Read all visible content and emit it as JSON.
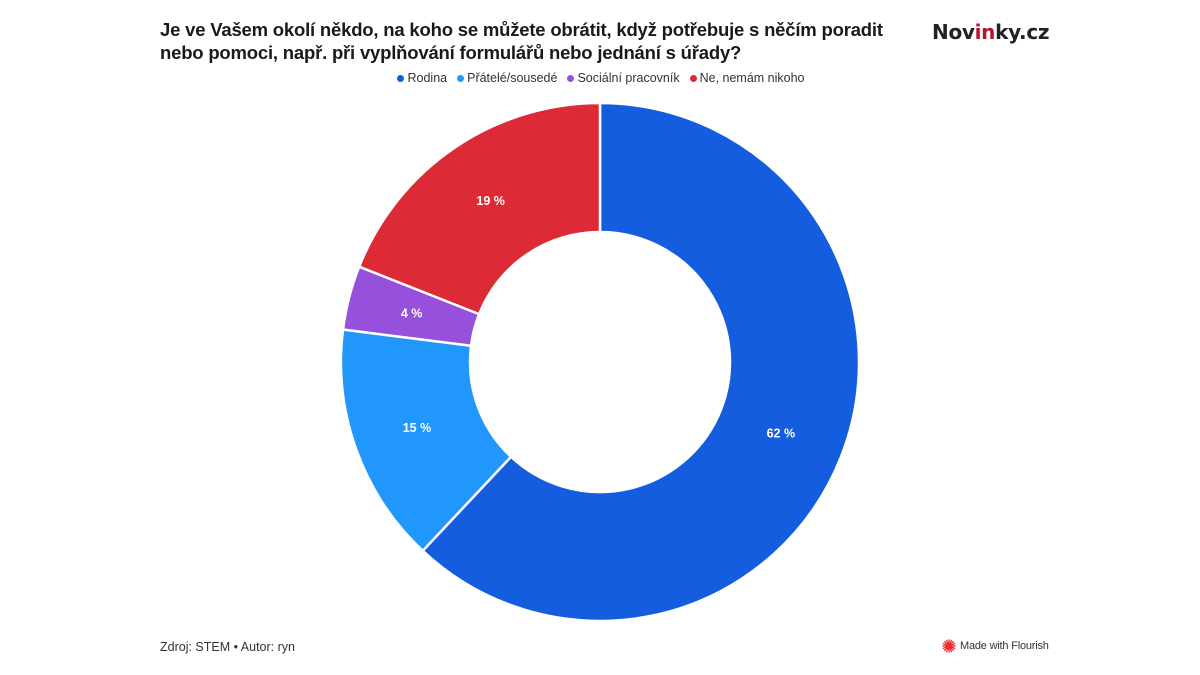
{
  "header": {
    "title": "Je ve Vašem okolí někdo, na koho se můžete obrátit, když potřebuje s něčím poradit nebo pomoci, např. při vyplňování formulářů nebo jednání s úřady?",
    "logo_prefix": "Nov",
    "logo_accent": "in",
    "logo_suffix": "ky.cz"
  },
  "legend": [
    {
      "label": "Rodina",
      "color": "#155ddf"
    },
    {
      "label": "Přátelé/sousedé",
      "color": "#2196fb"
    },
    {
      "label": "Sociální pracovník",
      "color": "#9750dc"
    },
    {
      "label": "Ne, nemám nikoho",
      "color": "#dc2b36"
    }
  ],
  "chart_data": {
    "type": "pie",
    "subtype": "donut",
    "title": "Je ve Vašem okolí někdo, na koho se můžete obrátit, když potřebuje s něčím poradit nebo pomoci, např. při vyplňování formulářů nebo jednání s úřady?",
    "categories": [
      "Rodina",
      "Přátelé/sousedé",
      "Sociální pracovník",
      "Ne, nemám nikoho"
    ],
    "values": [
      62,
      15,
      4,
      19
    ],
    "labels": [
      "62 %",
      "15 %",
      "4 %",
      "19 %"
    ],
    "colors": [
      "#155ddf",
      "#2196fb",
      "#9750dc",
      "#dc2b36"
    ],
    "unit": "%",
    "legend_position": "top",
    "start_angle": "12 o'clock, clockwise"
  },
  "footer": {
    "source": "Zdroj: STEM • Autor: ryn",
    "flourish": "Made with Flourish"
  }
}
